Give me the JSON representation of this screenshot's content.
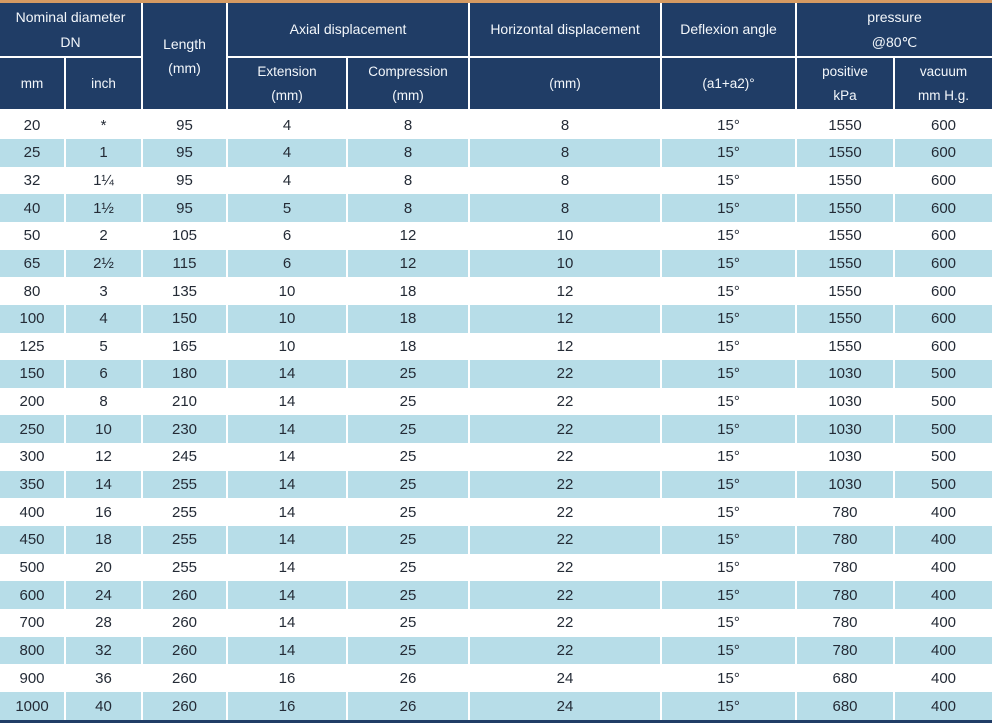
{
  "colors": {
    "header_bg": "#203d66",
    "row_alt_bg": "#b7dde8",
    "row_bg": "#ffffff",
    "top_line": "#d59a62",
    "header_text": "#f3f7fb",
    "body_text": "#242b36"
  },
  "table": {
    "header": {
      "nominal_diameter_line1": "Nominal diameter",
      "nominal_diameter_line2": "DN",
      "mm": "mm",
      "inch": "inch",
      "length_line1": "Length",
      "length_line2": "(mm)",
      "axial": "Axial displacement",
      "extension_line1": "Extension",
      "extension_line2": "(mm)",
      "compression_line1": "Compression",
      "compression_line2": "(mm)",
      "horizontal": "Horizontal displacement",
      "horizontal_unit": "(mm)",
      "deflexion": "Deflexion angle",
      "deflexion_unit": "(a1+a2)°",
      "pressure_line1": "pressure",
      "pressure_line2": "@80℃",
      "positive_line1": "positive",
      "positive_line2": "kPa",
      "vacuum_line1": "vacuum",
      "vacuum_line2": "mm H.g."
    },
    "rows": [
      [
        "20",
        "*",
        "95",
        "4",
        "8",
        "8",
        "15°",
        "1550",
        "600"
      ],
      [
        "25",
        "1",
        "95",
        "4",
        "8",
        "8",
        "15°",
        "1550",
        "600"
      ],
      [
        "32",
        "1¼",
        "95",
        "4",
        "8",
        "8",
        "15°",
        "1550",
        "600"
      ],
      [
        "40",
        "1½",
        "95",
        "5",
        "8",
        "8",
        "15°",
        "1550",
        "600"
      ],
      [
        "50",
        "2",
        "105",
        "6",
        "12",
        "10",
        "15°",
        "1550",
        "600"
      ],
      [
        "65",
        "2½",
        "115",
        "6",
        "12",
        "10",
        "15°",
        "1550",
        "600"
      ],
      [
        "80",
        "3",
        "135",
        "10",
        "18",
        "12",
        "15°",
        "1550",
        "600"
      ],
      [
        "100",
        "4",
        "150",
        "10",
        "18",
        "12",
        "15°",
        "1550",
        "600"
      ],
      [
        "125",
        "5",
        "165",
        "10",
        "18",
        "12",
        "15°",
        "1550",
        "600"
      ],
      [
        "150",
        "6",
        "180",
        "14",
        "25",
        "22",
        "15°",
        "1030",
        "500"
      ],
      [
        "200",
        "8",
        "210",
        "14",
        "25",
        "22",
        "15°",
        "1030",
        "500"
      ],
      [
        "250",
        "10",
        "230",
        "14",
        "25",
        "22",
        "15°",
        "1030",
        "500"
      ],
      [
        "300",
        "12",
        "245",
        "14",
        "25",
        "22",
        "15°",
        "1030",
        "500"
      ],
      [
        "350",
        "14",
        "255",
        "14",
        "25",
        "22",
        "15°",
        "1030",
        "500"
      ],
      [
        "400",
        "16",
        "255",
        "14",
        "25",
        "22",
        "15°",
        "780",
        "400"
      ],
      [
        "450",
        "18",
        "255",
        "14",
        "25",
        "22",
        "15°",
        "780",
        "400"
      ],
      [
        "500",
        "20",
        "255",
        "14",
        "25",
        "22",
        "15°",
        "780",
        "400"
      ],
      [
        "600",
        "24",
        "260",
        "14",
        "25",
        "22",
        "15°",
        "780",
        "400"
      ],
      [
        "700",
        "28",
        "260",
        "14",
        "25",
        "22",
        "15°",
        "780",
        "400"
      ],
      [
        "800",
        "32",
        "260",
        "14",
        "25",
        "22",
        "15°",
        "780",
        "400"
      ],
      [
        "900",
        "36",
        "260",
        "16",
        "26",
        "24",
        "15°",
        "680",
        "400"
      ],
      [
        "1000",
        "40",
        "260",
        "16",
        "26",
        "24",
        "15°",
        "680",
        "400"
      ]
    ]
  }
}
